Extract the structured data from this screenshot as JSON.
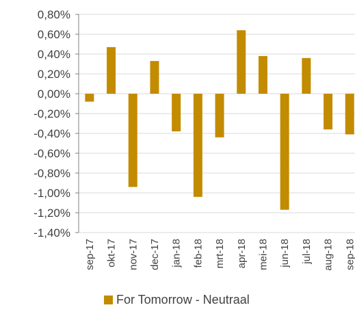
{
  "chart_data": {
    "type": "bar",
    "categories": [
      "sep-17",
      "okt-17",
      "nov-17",
      "dec-17",
      "jan-18",
      "feb-18",
      "mrt-18",
      "apr-18",
      "mei-18",
      "jun-18",
      "jul-18",
      "aug-18",
      "sep-18"
    ],
    "series": [
      {
        "name": "For Tomorrow - Neutraal",
        "values": [
          -0.08,
          0.47,
          -0.94,
          0.33,
          -0.38,
          -1.04,
          -0.44,
          0.64,
          0.38,
          -1.17,
          0.36,
          -0.36,
          -0.41
        ]
      }
    ],
    "ylim": [
      -1.4,
      0.8
    ],
    "yticks": [
      "0,80%",
      "0,60%",
      "0,40%",
      "0,20%",
      "0,00%",
      "-0,20%",
      "-0,40%",
      "-0,60%",
      "-0,80%",
      "-1,00%",
      "-1,20%",
      "-1,40%"
    ],
    "ytick_values": [
      0.8,
      0.6,
      0.4,
      0.2,
      0.0,
      -0.2,
      -0.4,
      -0.6,
      -0.8,
      -1.0,
      -1.2,
      -1.4
    ],
    "gridlines": true,
    "legend": "bottom",
    "colors": {
      "bar": "#C38B00",
      "grid": "#D9D9D9",
      "axis": "#808080"
    }
  }
}
